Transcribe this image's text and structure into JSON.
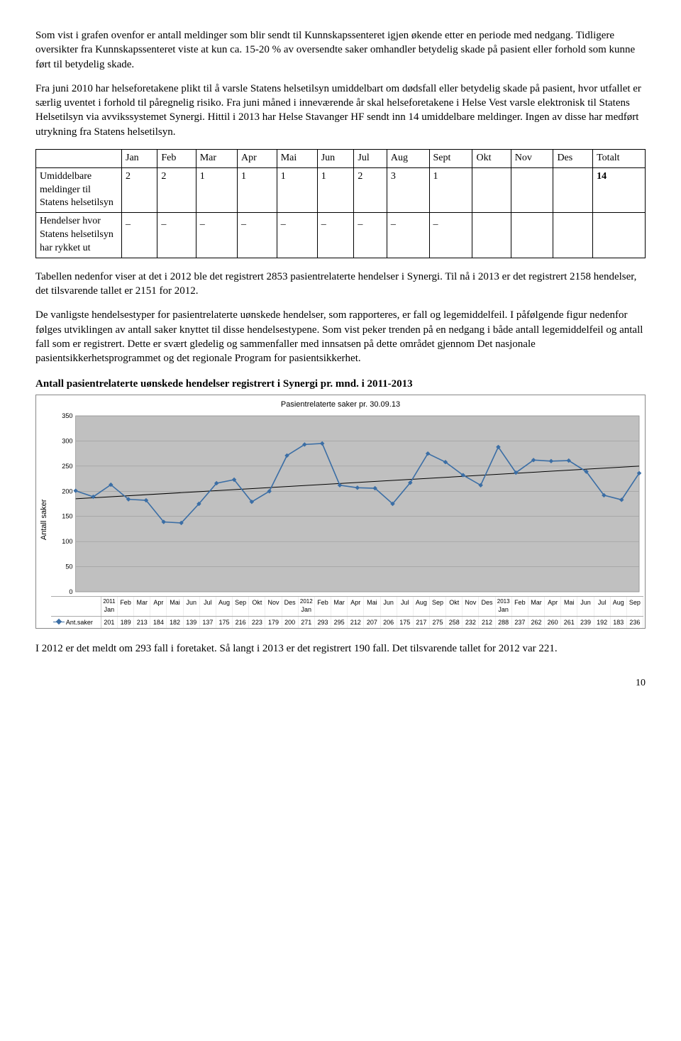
{
  "paragraphs": {
    "p1": "Som vist i grafen ovenfor er antall meldinger som blir sendt til Kunnskapssenteret igjen økende etter en periode med nedgang. Tidligere oversikter fra Kunnskapssenteret viste at kun ca. 15-20 % av oversendte saker omhandler betydelig skade på pasient eller forhold som kunne ført til betydelig skade.",
    "p2": "Fra juni 2010 har helseforetakene plikt til å varsle Statens helsetilsyn umiddelbart om dødsfall eller betydelig skade på pasient, hvor utfallet er særlig uventet i forhold til påregnelig risiko. Fra juni måned i inneværende år skal helseforetakene i Helse Vest varsle elektronisk til Statens Helsetilsyn via avvikssystemet Synergi. Hittil i 2013 har Helse Stavanger HF sendt inn 14 umiddelbare meldinger. Ingen av disse har medført utrykning fra Statens helsetilsyn.",
    "p3": "Tabellen nedenfor viser at det i 2012 ble det registrert 2853 pasientrelaterte hendelser i Synergi. Til nå i 2013 er det registrert 2158 hendelser, det tilsvarende tallet er 2151 for 2012.",
    "p4": "De vanligste hendelsestyper for pasientrelaterte uønskede hendelser, som rapporteres, er fall og legemiddelfeil. I påfølgende figur nedenfor følges utviklingen av antall saker knyttet til disse hendelsestypene. Som vist peker trenden på en nedgang i både antall legemiddelfeil og antall fall som er registrert. Dette er svært gledelig og sammenfaller med innsatsen på dette området gjennom Det nasjonale pasientsikkerhetsprogrammet og det regionale Program for pasientsikkerhet.",
    "p5": "I 2012 er det meldt om 293 fall i foretaket. Så langt i 2013 er det registrert 190 fall. Det tilsvarende tallet for 2012 var 221."
  },
  "table": {
    "headers": [
      "Jan",
      "Feb",
      "Mar",
      "Apr",
      "Mai",
      "Jun",
      "Jul",
      "Aug",
      "Sept",
      "Okt",
      "Nov",
      "Des",
      "Totalt"
    ],
    "rows": [
      {
        "label": "Umiddelbare meldinger til Statens helsetilsyn",
        "cells": [
          "2",
          "2",
          "1",
          "1",
          "1",
          "1",
          "2",
          "3",
          "1",
          "",
          "",
          "",
          "14"
        ],
        "bold_last": true
      },
      {
        "label": "Hendelser hvor Statens helsetilsyn har rykket ut",
        "cells": [
          "_",
          "_",
          "_",
          "_",
          "_",
          "_",
          "_",
          "_",
          "_",
          "",
          "",
          "",
          ""
        ],
        "bold_last": false
      }
    ]
  },
  "chart_heading": "Antall pasientrelaterte uønskede hendelser registrert i Synergi pr. mnd. i 2011-2013",
  "chart": {
    "type": "line",
    "title": "Pasientrelaterte saker pr. 30.09.13",
    "ylabel": "Antall saker",
    "series_name": "Ant.saker",
    "background_color": "#c0c0c0",
    "grid_color": "#9a9a9a",
    "line_color": "#3b6ea5",
    "marker_color": "#3b6ea5",
    "trend_color": "#000000",
    "ylim": [
      0,
      350
    ],
    "ytick_step": 50,
    "x_labels_top": [
      {
        "t": "2011",
        "s": "Jan"
      },
      {
        "t": "",
        "s": "Feb"
      },
      {
        "t": "",
        "s": "Mar"
      },
      {
        "t": "",
        "s": "Apr"
      },
      {
        "t": "",
        "s": "Mai"
      },
      {
        "t": "",
        "s": "Jun"
      },
      {
        "t": "",
        "s": "Jul"
      },
      {
        "t": "",
        "s": "Aug"
      },
      {
        "t": "",
        "s": "Sep"
      },
      {
        "t": "",
        "s": "Okt"
      },
      {
        "t": "",
        "s": "Nov"
      },
      {
        "t": "",
        "s": "Des"
      },
      {
        "t": "2012",
        "s": "Jan"
      },
      {
        "t": "",
        "s": "Feb"
      },
      {
        "t": "",
        "s": "Mar"
      },
      {
        "t": "",
        "s": "Apr"
      },
      {
        "t": "",
        "s": "Mai"
      },
      {
        "t": "",
        "s": "Jun"
      },
      {
        "t": "",
        "s": "Jul"
      },
      {
        "t": "",
        "s": "Aug"
      },
      {
        "t": "",
        "s": "Sep"
      },
      {
        "t": "",
        "s": "Okt"
      },
      {
        "t": "",
        "s": "Nov"
      },
      {
        "t": "",
        "s": "Des"
      },
      {
        "t": "2013",
        "s": "Jan"
      },
      {
        "t": "",
        "s": "Feb"
      },
      {
        "t": "",
        "s": "Mar"
      },
      {
        "t": "",
        "s": "Apr"
      },
      {
        "t": "",
        "s": "Mai"
      },
      {
        "t": "",
        "s": "Jun"
      },
      {
        "t": "",
        "s": "Jul"
      },
      {
        "t": "",
        "s": "Aug"
      },
      {
        "t": "",
        "s": "Sep"
      }
    ],
    "values": [
      201,
      189,
      213,
      184,
      182,
      139,
      137,
      175,
      216,
      223,
      179,
      200,
      271,
      293,
      295,
      212,
      207,
      206,
      175,
      217,
      275,
      258,
      232,
      212,
      288,
      237,
      262,
      260,
      261,
      239,
      192,
      183,
      236
    ],
    "trend": {
      "start": 185,
      "end": 250
    }
  },
  "page_number": "10"
}
